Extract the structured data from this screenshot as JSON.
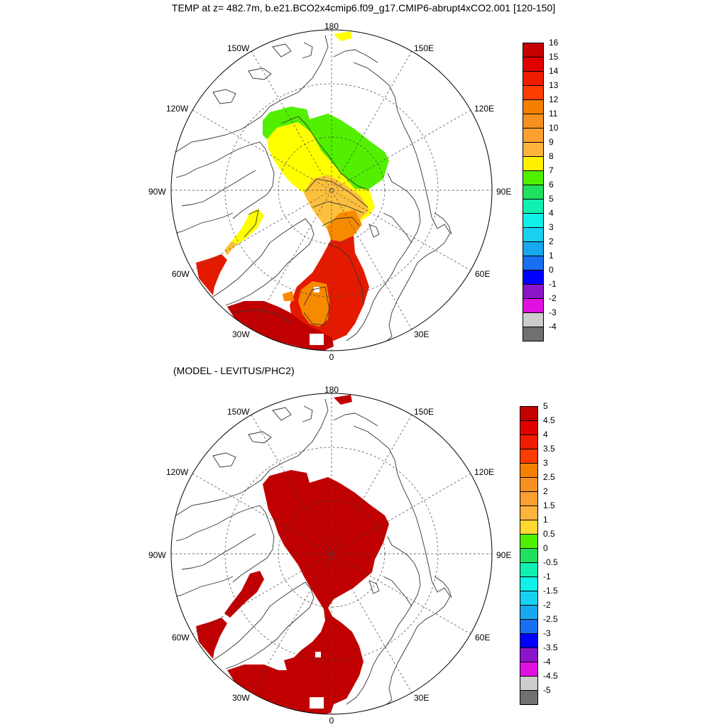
{
  "title": "TEMP at z= 482.7m, b.e21.BCO2x4cmip6.f09_g17.CMIP6-abrupt4xCO2.001 [120-150]",
  "subtitle": "(MODEL - LEVITUS/PHC2)",
  "map_labels": {
    "lon_180": "180",
    "lon_150w": "150W",
    "lon_150e": "150E",
    "lon_120w": "120W",
    "lon_120e": "120E",
    "lon_90w": "90W",
    "lon_90e": "90E",
    "lon_60w": "60W",
    "lon_60e": "60E",
    "lon_30w": "30W",
    "lon_30e": "30E",
    "lon_0": "0"
  },
  "top_colorbar": {
    "labels": [
      "16",
      "15",
      "14",
      "13",
      "12",
      "11",
      "10",
      "9",
      "8",
      "7",
      "6",
      "5",
      "4",
      "3",
      "2",
      "1",
      "0",
      "-1",
      "-2",
      "-3",
      "-4"
    ],
    "colors": [
      "#c40000",
      "#e00000",
      "#f01c00",
      "#ff3c00",
      "#f58000",
      "#f79020",
      "#fca030",
      "#fdb43c",
      "#fff000",
      "#50f000",
      "#20e060",
      "#10f0b0",
      "#10f0e8",
      "#18d0f0",
      "#18a8f0",
      "#1870f0",
      "#0000ff",
      "#8c14c8",
      "#e010e0",
      "#cccccc",
      "#707070"
    ]
  },
  "bottom_colorbar": {
    "labels": [
      "5",
      "4.5",
      "4",
      "3.5",
      "3",
      "2.5",
      "2",
      "1.5",
      "1",
      "0.5",
      "0",
      "-0.5",
      "-1",
      "-1.5",
      "-2",
      "-2.5",
      "-3",
      "-3.5",
      "-4",
      "-4.5",
      "-5"
    ],
    "colors": [
      "#c40000",
      "#e00000",
      "#f01c00",
      "#ff3c00",
      "#f58000",
      "#f79020",
      "#fca030",
      "#fdb43c",
      "#ffd830",
      "#50f000",
      "#20e060",
      "#10f0b0",
      "#10f0e8",
      "#18d0f0",
      "#18a8f0",
      "#1870f0",
      "#0000ff",
      "#8c14c8",
      "#e010e0",
      "#cccccc",
      "#707070"
    ]
  },
  "colors": {
    "green": "#52f000",
    "yellow": "#ffff00",
    "light_orange": "#fdc03c",
    "orange": "#f88a00",
    "red": "#e41a00",
    "dark_red": "#c00000",
    "coast": "#333333",
    "grid": "#444444"
  }
}
